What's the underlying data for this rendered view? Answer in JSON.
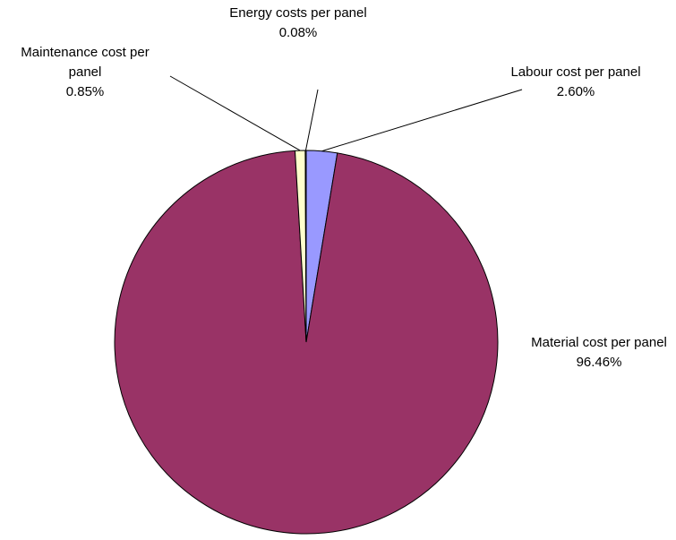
{
  "chart_data": {
    "type": "pie",
    "categories": [
      "Labour cost per panel",
      "Material cost per panel",
      "Maintenance cost per panel",
      "Energy costs per panel"
    ],
    "values": [
      2.6,
      96.46,
      0.85,
      0.08
    ],
    "value_labels": [
      "2.60%",
      "96.46%",
      "0.85%",
      "0.08%"
    ],
    "colors": [
      "#9999ff",
      "#993366",
      "#ffffcc",
      "#ccffff"
    ]
  }
}
